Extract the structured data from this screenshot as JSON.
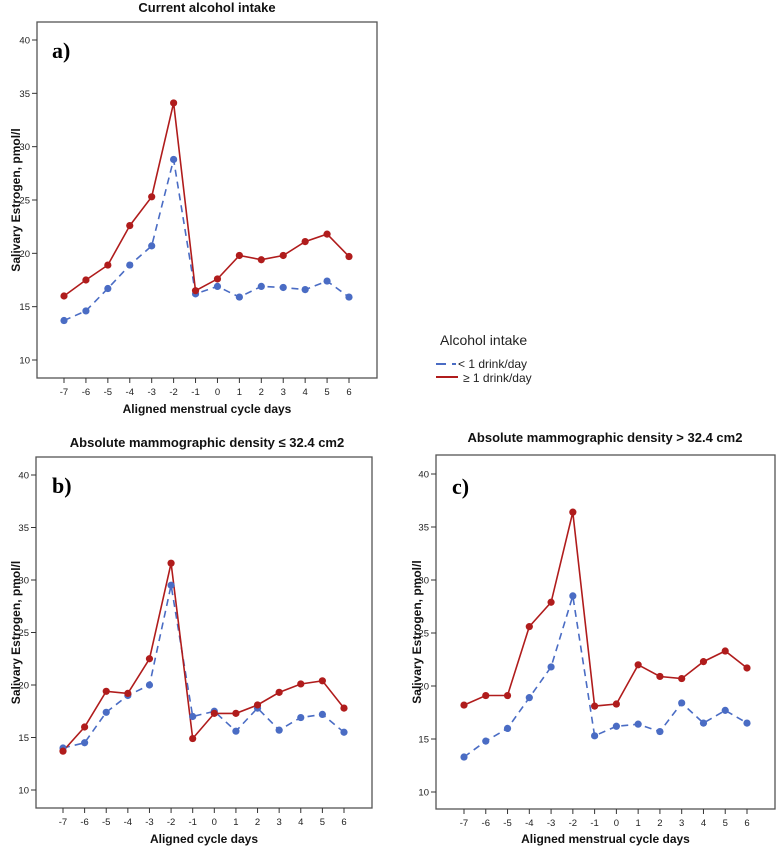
{
  "legend": {
    "title": "Alcohol intake",
    "items": [
      {
        "label": "< 1 drink/day",
        "color": "#4a6cc4",
        "style": "dashed"
      },
      {
        "label": "≥ 1 drink/day",
        "color": "#b01c1c",
        "style": "solid"
      }
    ]
  },
  "chart_data": [
    {
      "type": "line",
      "panel_label": "a)",
      "title": "Current alcohol intake",
      "xlabel": "Aligned menstrual cycle days",
      "ylabel": "Salivary Estrogen, pmol/l",
      "x": [
        -7,
        -6,
        -5,
        -4,
        -3,
        -2,
        -1,
        0,
        1,
        2,
        3,
        4,
        5,
        6
      ],
      "yticks": [
        10,
        15,
        20,
        25,
        30,
        35,
        40
      ],
      "ylim": [
        8.5,
        41.7
      ],
      "grid": false,
      "series": [
        {
          "name": "< 1 drink/day",
          "values": [
            13.7,
            14.6,
            16.7,
            18.9,
            20.7,
            28.8,
            16.2,
            16.9,
            15.9,
            16.9,
            16.8,
            16.6,
            17.4,
            15.9
          ]
        },
        {
          "name": "≥ 1 drink/day",
          "values": [
            16.0,
            17.5,
            18.9,
            22.6,
            25.3,
            34.1,
            16.5,
            17.6,
            19.8,
            19.4,
            19.8,
            21.1,
            21.8,
            19.7
          ]
        }
      ]
    },
    {
      "type": "line",
      "panel_label": "b)",
      "title": "Absolute mammographic density ≤ 32.4 cm2",
      "xlabel": "Aligned cycle days",
      "ylabel": "Salivary Estrogen, pmol/l",
      "x": [
        -7,
        -6,
        -5,
        -4,
        -3,
        -2,
        -1,
        0,
        1,
        2,
        3,
        4,
        5,
        6
      ],
      "yticks": [
        10,
        15,
        20,
        25,
        30,
        35,
        40
      ],
      "ylim": [
        8.5,
        41.1
      ],
      "grid": false,
      "series": [
        {
          "name": "< 1 drink/day",
          "values": [
            14.0,
            14.5,
            17.4,
            19.0,
            20.0,
            29.5,
            17.0,
            17.5,
            15.6,
            17.8,
            15.7,
            16.9,
            17.2,
            15.5
          ]
        },
        {
          "name": "≥ 1 drink/day",
          "values": [
            13.7,
            16.0,
            19.4,
            19.2,
            22.5,
            31.6,
            14.9,
            17.3,
            17.3,
            18.1,
            19.3,
            20.1,
            20.4,
            17.8
          ]
        }
      ]
    },
    {
      "type": "line",
      "panel_label": "c)",
      "title": "Absolute mammographic density > 32.4 cm2",
      "xlabel": "Aligned menstrual cycle days",
      "ylabel": "Salivary Estrogen, pmol/l",
      "x": [
        -7,
        -6,
        -5,
        -4,
        -3,
        -2,
        -1,
        0,
        1,
        2,
        3,
        4,
        5,
        6
      ],
      "yticks": [
        10,
        15,
        20,
        25,
        30,
        35,
        40
      ],
      "ylim": [
        8.6,
        41.2
      ],
      "grid": false,
      "series": [
        {
          "name": "< 1 drink/day",
          "values": [
            13.3,
            14.8,
            16.0,
            18.9,
            21.8,
            28.5,
            15.3,
            16.2,
            16.4,
            15.7,
            18.4,
            16.5,
            17.7,
            16.5
          ]
        },
        {
          "name": "≥ 1 drink/day",
          "values": [
            18.2,
            19.1,
            19.1,
            25.6,
            27.9,
            36.4,
            18.1,
            18.3,
            22.0,
            20.9,
            20.7,
            22.3,
            23.3,
            21.7
          ]
        }
      ]
    }
  ]
}
